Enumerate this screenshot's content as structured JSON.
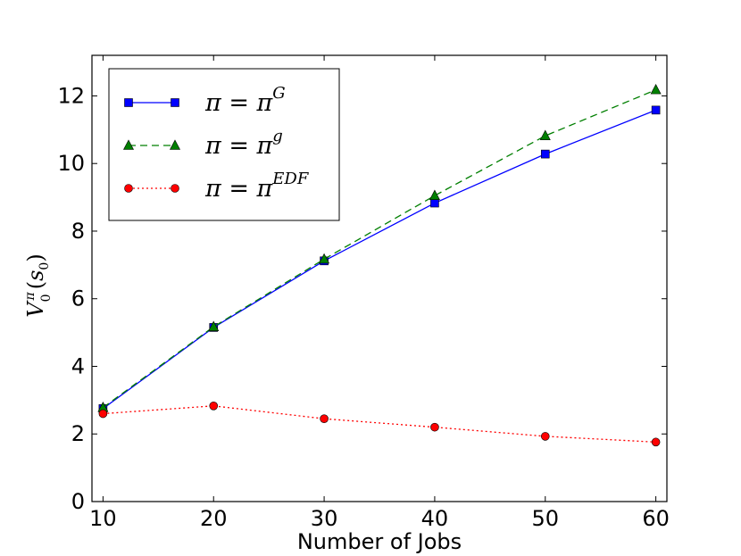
{
  "chart_data": {
    "type": "line",
    "title": "",
    "xlabel": "Number of Jobs",
    "ylabel": "V_0^π(s_0)",
    "xlim": [
      9,
      61
    ],
    "ylim": [
      0,
      13.2
    ],
    "x": [
      10,
      20,
      30,
      40,
      50,
      60
    ],
    "xticks": [
      "10",
      "20",
      "30",
      "40",
      "50",
      "60"
    ],
    "yticks": [
      "0",
      "2",
      "4",
      "6",
      "8",
      "10",
      "12"
    ],
    "grid": false,
    "legend_position": "top-left",
    "series": [
      {
        "name": "π = π^G",
        "legend_base": "π = π",
        "legend_sup": "G",
        "values": [
          2.75,
          5.15,
          7.12,
          8.83,
          10.28,
          11.58
        ],
        "color": "#0000ff",
        "linestyle": "solid",
        "marker": "square"
      },
      {
        "name": "π = π^g",
        "legend_base": "π = π",
        "legend_sup": "g",
        "values": [
          2.78,
          5.17,
          7.17,
          9.05,
          10.82,
          12.18
        ],
        "color": "#007f00",
        "linestyle": "dashed",
        "marker": "triangle"
      },
      {
        "name": "π = π^EDF",
        "legend_base": "π = π",
        "legend_sup": "EDF",
        "values": [
          2.6,
          2.83,
          2.45,
          2.2,
          1.93,
          1.76
        ],
        "color": "#ff0000",
        "linestyle": "dotted",
        "marker": "circle"
      }
    ]
  },
  "ylabel_parts": {
    "v": "V",
    "sub": "0",
    "sup": "π",
    "open": "(",
    "s": "s",
    "s_sub": "0",
    "close": ")"
  }
}
